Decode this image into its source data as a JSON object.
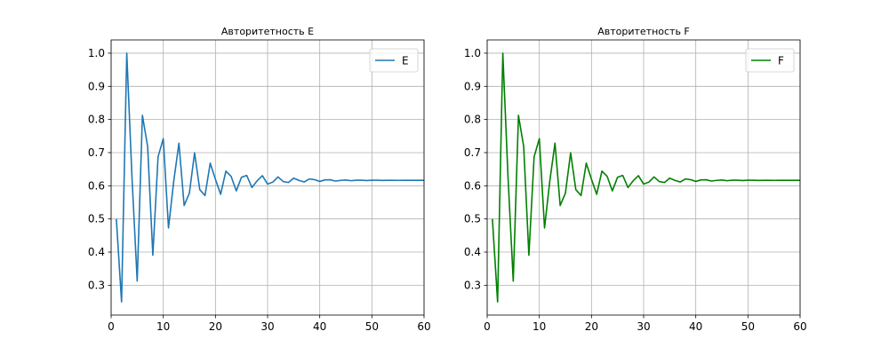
{
  "chart_data": [
    {
      "type": "line",
      "title": "Авторитетность E",
      "xlabel": "",
      "ylabel": "",
      "xlim": [
        0,
        60
      ],
      "ylim": [
        0.21,
        1.04
      ],
      "xticks": [
        0,
        10,
        20,
        30,
        40,
        50,
        60
      ],
      "yticks": [
        0.3,
        0.4,
        0.5,
        0.6,
        0.7,
        0.8,
        0.9,
        1.0
      ],
      "grid": true,
      "legend_position": "top-right",
      "series": [
        {
          "name": "E",
          "color": "#1f77b4",
          "x": [
            1,
            2,
            3,
            4,
            5,
            6,
            7,
            8,
            9,
            10,
            11,
            12,
            13,
            14,
            15,
            16,
            17,
            18,
            19,
            20,
            21,
            22,
            23,
            24,
            25,
            26,
            27,
            28,
            29,
            30,
            31,
            32,
            33,
            34,
            35,
            36,
            37,
            38,
            39,
            40,
            41,
            42,
            43,
            44,
            45,
            46,
            47,
            48,
            49,
            50,
            51,
            52,
            53,
            54,
            55,
            56,
            57,
            58,
            59,
            60
          ],
          "y": [
            0.5,
            0.25,
            1.0,
            0.625,
            0.3125,
            0.8125,
            0.7188,
            0.3906,
            0.6875,
            0.7422,
            0.4727,
            0.6133,
            0.7285,
            0.5405,
            0.5775,
            0.6995,
            0.5883,
            0.5706,
            0.6683,
            0.6196,
            0.5743,
            0.6442,
            0.6286,
            0.5846,
            0.6258,
            0.6313,
            0.5947,
            0.6152,
            0.6305,
            0.6051,
            0.6111,
            0.6269,
            0.6127,
            0.6099,
            0.6231,
            0.6163,
            0.6115,
            0.6206,
            0.6185,
            0.6131,
            0.6178,
            0.6181,
            0.6143,
            0.6163,
            0.6175,
            0.6153,
            0.6167,
            0.6169,
            0.6158,
            0.6167,
            0.6168,
            0.6161,
            0.6166,
            0.6165,
            0.6163,
            0.6166,
            0.6165,
            0.6164,
            0.6165,
            0.6165
          ]
        }
      ]
    },
    {
      "type": "line",
      "title": "Авторитетность F",
      "xlabel": "",
      "ylabel": "",
      "xlim": [
        0,
        60
      ],
      "ylim": [
        0.21,
        1.04
      ],
      "xticks": [
        0,
        10,
        20,
        30,
        40,
        50,
        60
      ],
      "yticks": [
        0.3,
        0.4,
        0.5,
        0.6,
        0.7,
        0.8,
        0.9,
        1.0
      ],
      "grid": true,
      "legend_position": "top-right",
      "series": [
        {
          "name": "F",
          "color": "#008000",
          "x": [
            1,
            2,
            3,
            4,
            5,
            6,
            7,
            8,
            9,
            10,
            11,
            12,
            13,
            14,
            15,
            16,
            17,
            18,
            19,
            20,
            21,
            22,
            23,
            24,
            25,
            26,
            27,
            28,
            29,
            30,
            31,
            32,
            33,
            34,
            35,
            36,
            37,
            38,
            39,
            40,
            41,
            42,
            43,
            44,
            45,
            46,
            47,
            48,
            49,
            50,
            51,
            52,
            53,
            54,
            55,
            56,
            57,
            58,
            59,
            60
          ],
          "y": [
            0.5,
            0.25,
            1.0,
            0.625,
            0.3125,
            0.8125,
            0.7188,
            0.3906,
            0.6875,
            0.7422,
            0.4727,
            0.6133,
            0.7285,
            0.5405,
            0.5775,
            0.6995,
            0.5883,
            0.5706,
            0.6683,
            0.6196,
            0.5743,
            0.6442,
            0.6286,
            0.5846,
            0.6258,
            0.6313,
            0.5947,
            0.6152,
            0.6305,
            0.6051,
            0.6111,
            0.6269,
            0.6127,
            0.6099,
            0.6231,
            0.6163,
            0.6115,
            0.6206,
            0.6185,
            0.6131,
            0.6178,
            0.6181,
            0.6143,
            0.6163,
            0.6175,
            0.6153,
            0.6167,
            0.6169,
            0.6158,
            0.6167,
            0.6168,
            0.6161,
            0.6166,
            0.6165,
            0.6163,
            0.6166,
            0.6165,
            0.6164,
            0.6165,
            0.6165
          ]
        }
      ]
    }
  ]
}
